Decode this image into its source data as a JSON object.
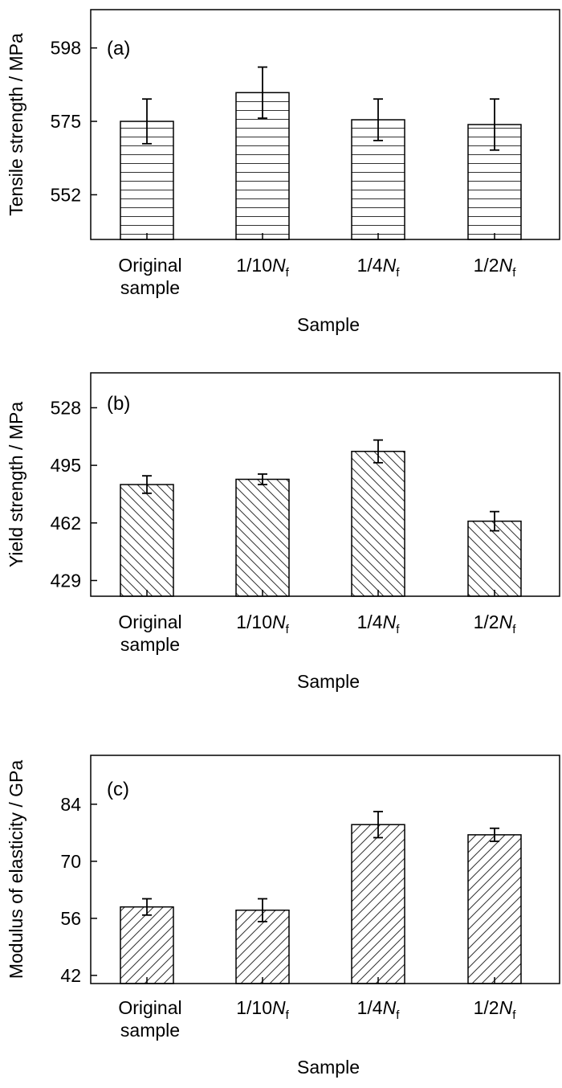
{
  "chart_data": [
    {
      "type": "bar",
      "panel_label": "(a)",
      "categories": [
        {
          "lines": [
            "Original",
            "sample"
          ]
        },
        {
          "base": "1/10",
          "italic": "N",
          "sub": "f"
        },
        {
          "base": "1/4",
          "italic": "N",
          "sub": "f"
        },
        {
          "base": "1/2",
          "italic": "N",
          "sub": "f"
        }
      ],
      "values": [
        575,
        584,
        575.5,
        574
      ],
      "errors": [
        7,
        8,
        6.5,
        8
      ],
      "xlabel": "Sample",
      "ylabel": "Tensile strength / MPa",
      "ylim": [
        538,
        610
      ],
      "yticks": [
        552,
        575,
        598
      ],
      "hatch": "horizontal",
      "grid": false,
      "legend": null
    },
    {
      "type": "bar",
      "panel_label": "(b)",
      "categories": [
        {
          "lines": [
            "Original",
            "sample"
          ]
        },
        {
          "base": "1/10",
          "italic": "N",
          "sub": "f"
        },
        {
          "base": "1/4",
          "italic": "N",
          "sub": "f"
        },
        {
          "base": "1/2",
          "italic": "N",
          "sub": "f"
        }
      ],
      "values": [
        484,
        487,
        503,
        463
      ],
      "errors": [
        5,
        3,
        6.5,
        5.5
      ],
      "xlabel": "Sample",
      "ylabel": "Yield strength / MPa",
      "ylim": [
        420,
        548
      ],
      "yticks": [
        429,
        462,
        495,
        528
      ],
      "hatch": "diagonal-back",
      "grid": false,
      "legend": null
    },
    {
      "type": "bar",
      "panel_label": "(c)",
      "categories": [
        {
          "lines": [
            "Original",
            "sample"
          ]
        },
        {
          "base": "1/10",
          "italic": "N",
          "sub": "f"
        },
        {
          "base": "1/4",
          "italic": "N",
          "sub": "f"
        },
        {
          "base": "1/2",
          "italic": "N",
          "sub": "f"
        }
      ],
      "values": [
        58.8,
        58,
        79,
        76.5
      ],
      "errors": [
        2,
        2.8,
        3.2,
        1.6
      ],
      "xlabel": "Sample",
      "ylabel": "Modulus of elasticity / GPa",
      "ylim": [
        40,
        96
      ],
      "yticks": [
        42,
        56,
        70,
        84
      ],
      "hatch": "diagonal-forward",
      "grid": false,
      "legend": null
    }
  ]
}
